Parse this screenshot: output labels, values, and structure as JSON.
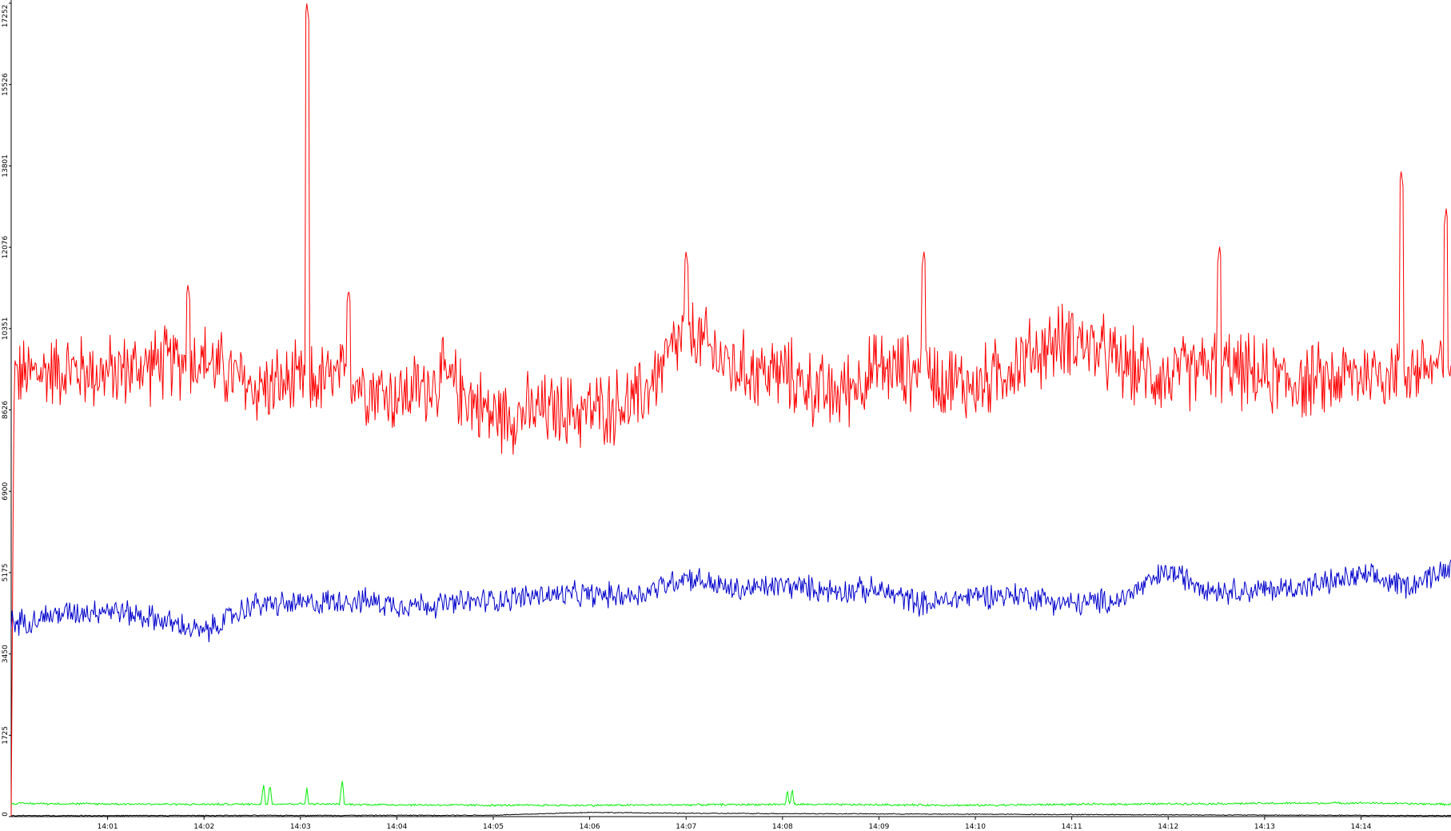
{
  "chart_data": {
    "type": "line",
    "title": "",
    "xlabel": "",
    "ylabel": "",
    "grid": false,
    "legend": "none",
    "ylim": [
      0,
      17252
    ],
    "yticks": [
      0,
      1725,
      3450,
      5175,
      6900,
      8626,
      10351,
      12076,
      13801,
      15526,
      17252
    ],
    "ytick_labels": [
      "0",
      "1725",
      "3450",
      "5175",
      "6900",
      "8626",
      "10351",
      "12076",
      "13801",
      "15526",
      "17252"
    ],
    "xlim": [
      "14:00:00",
      "14:14:56"
    ],
    "xticks": [
      "14:01",
      "14:02",
      "14:03",
      "14:04",
      "14:05",
      "14:06",
      "14:07",
      "14:08",
      "14:09",
      "14:10",
      "14:11",
      "14:12",
      "14:13",
      "14:14"
    ],
    "series": [
      {
        "color": "#ff0000",
        "x": [
          "14:00:00",
          "14:00:30",
          "14:01:00",
          "14:01:30",
          "14:02:00",
          "14:02:30",
          "14:03:00",
          "14:03:30",
          "14:04:00",
          "14:04:30",
          "14:05:00",
          "14:05:30",
          "14:06:00",
          "14:06:30",
          "14:07:00",
          "14:07:30",
          "14:08:00",
          "14:08:30",
          "14:09:00",
          "14:09:30",
          "14:10:00",
          "14:10:30",
          "14:11:00",
          "14:11:30",
          "14:12:00",
          "14:12:30",
          "14:13:00",
          "14:13:30",
          "14:14:00",
          "14:14:30",
          "14:14:56"
        ],
        "values": [
          9300,
          9500,
          9400,
          9600,
          9700,
          9100,
          9200,
          9300,
          8900,
          9300,
          8500,
          8600,
          8600,
          8800,
          10300,
          9500,
          9400,
          8900,
          9500,
          9400,
          9100,
          9700,
          10200,
          9600,
          9300,
          9600,
          9300,
          9200,
          9400,
          9500,
          9600
        ],
        "spikes": [
          {
            "x": "14:03:04",
            "y": 17252
          },
          {
            "x": "14:09:28",
            "y": 12000
          },
          {
            "x": "14:12:32",
            "y": 12100
          },
          {
            "x": "14:14:25",
            "y": 13700
          },
          {
            "x": "14:14:53",
            "y": 12900
          },
          {
            "x": "14:07:00",
            "y": 12000
          },
          {
            "x": "14:01:50",
            "y": 11300
          },
          {
            "x": "14:03:30",
            "y": 11200
          }
        ]
      },
      {
        "color": "#0000cc",
        "x": [
          "14:00:00",
          "14:00:30",
          "14:01:00",
          "14:01:30",
          "14:02:00",
          "14:02:30",
          "14:03:00",
          "14:03:30",
          "14:04:00",
          "14:04:30",
          "14:05:00",
          "14:05:30",
          "14:06:00",
          "14:06:30",
          "14:07:00",
          "14:07:30",
          "14:08:00",
          "14:08:30",
          "14:09:00",
          "14:09:30",
          "14:10:00",
          "14:10:30",
          "14:11:00",
          "14:11:30",
          "14:12:00",
          "14:12:30",
          "14:13:00",
          "14:13:30",
          "14:14:00",
          "14:14:30",
          "14:14:56"
        ],
        "values": [
          4100,
          4300,
          4400,
          4200,
          3900,
          4500,
          4500,
          4600,
          4500,
          4500,
          4600,
          4700,
          4700,
          4700,
          5100,
          4800,
          4900,
          4800,
          4800,
          4500,
          4700,
          4700,
          4500,
          4600,
          5200,
          4800,
          4800,
          4900,
          5100,
          4900,
          5300
        ]
      },
      {
        "color": "#00ee00",
        "x": [
          "14:00:00",
          "14:01:00",
          "14:02:00",
          "14:03:00",
          "14:04:00",
          "14:05:00",
          "14:06:00",
          "14:07:00",
          "14:08:00",
          "14:09:00",
          "14:10:00",
          "14:11:00",
          "14:12:00",
          "14:13:00",
          "14:14:00",
          "14:14:56"
        ],
        "values": [
          280,
          270,
          260,
          270,
          250,
          240,
          240,
          250,
          260,
          250,
          240,
          260,
          270,
          280,
          290,
          260
        ],
        "spikes": [
          {
            "x": "14:02:37",
            "y": 700
          },
          {
            "x": "14:02:41",
            "y": 700
          },
          {
            "x": "14:03:04",
            "y": 620
          },
          {
            "x": "14:03:26",
            "y": 780
          },
          {
            "x": "14:08:03",
            "y": 600
          },
          {
            "x": "14:08:06",
            "y": 620
          }
        ]
      },
      {
        "color": "#000000",
        "x": [
          "14:00:00",
          "14:05:00",
          "14:06:00",
          "14:07:00",
          "14:14:56"
        ],
        "values": [
          20,
          30,
          90,
          70,
          20
        ]
      }
    ]
  }
}
